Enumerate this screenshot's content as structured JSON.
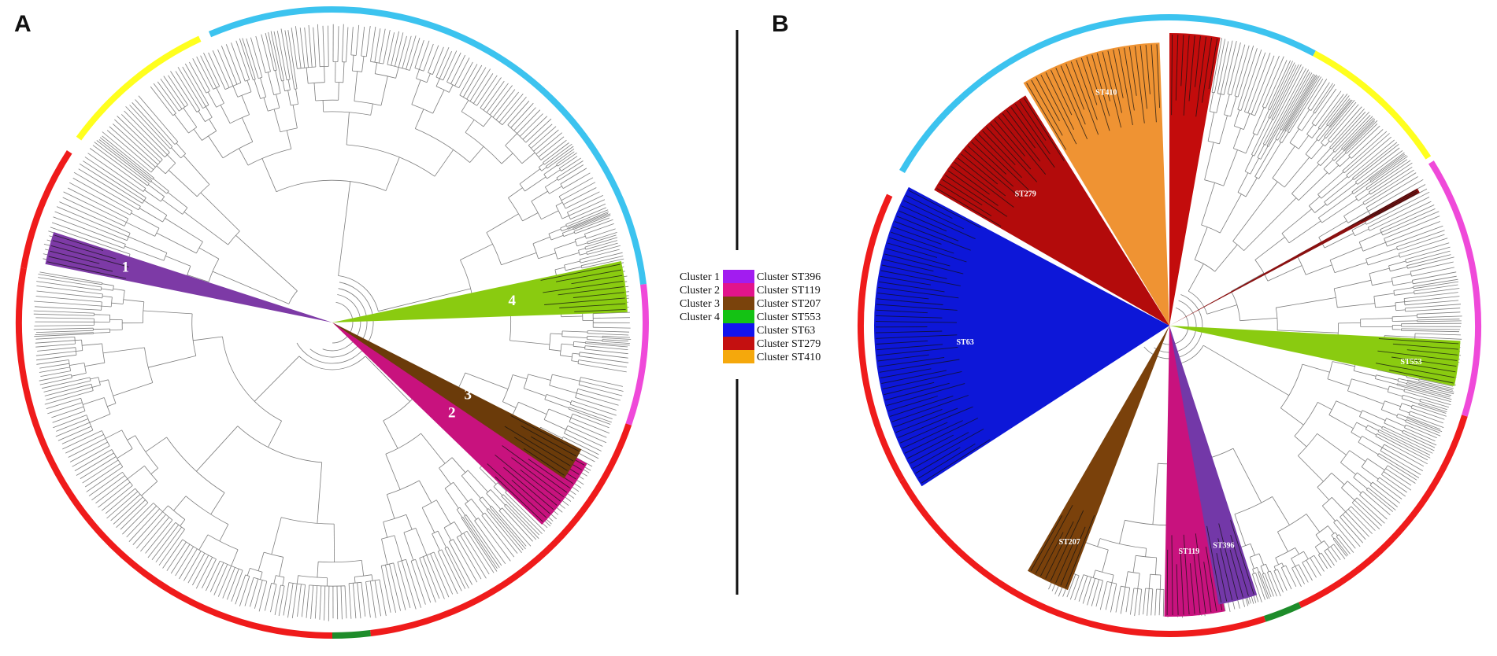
{
  "figure": {
    "panel_a": {
      "letter": "A"
    },
    "panel_b": {
      "letter": "B"
    }
  },
  "colors": {
    "ring_red": "#ef1b1b",
    "ring_cyan": "#3cc3ef",
    "ring_yellow": "#ffff1e",
    "ring_magenta": "#ef49d9",
    "ring_green": "#1e8c2a",
    "branch": "#7d7d7d"
  },
  "tree_a": {
    "clusters": [
      {
        "label": "1",
        "color": "#7d3aa6"
      },
      {
        "label": "2",
        "color": "#c8127e"
      },
      {
        "label": "3",
        "color": "#6b3b0a"
      },
      {
        "label": "4",
        "color": "#8acb10"
      }
    ]
  },
  "tree_b": {
    "clusters": [
      {
        "label": "ST279",
        "color": "#b30b0b"
      },
      {
        "label": "ST410",
        "color": "#ef9333"
      },
      {
        "label": "ST553",
        "color": "#8acb10"
      },
      {
        "label": "ST63",
        "color": "#0d17d8"
      },
      {
        "label": "ST207",
        "color": "#7a410b"
      },
      {
        "label": "ST119",
        "color": "#c8127e"
      },
      {
        "label": "ST396",
        "color": "#7338a8"
      },
      {
        "label": "",
        "color": "#c30c0c"
      },
      {
        "label": "",
        "color": "#8a1010"
      }
    ]
  },
  "legend": {
    "cluster_labels": [
      "Cluster 1",
      "Cluster 2",
      "Cluster 3",
      "Cluster 4"
    ],
    "entries": [
      {
        "label": "Cluster ST396",
        "color": "#a21cf0"
      },
      {
        "label": "Cluster ST119",
        "color": "#e2148c"
      },
      {
        "label": "Cluster ST207",
        "color": "#7a430c"
      },
      {
        "label": "Cluster ST553",
        "color": "#14c214"
      },
      {
        "label": "Cluster ST63",
        "color": "#1313ee"
      },
      {
        "label": "Cluster ST279",
        "color": "#c41010"
      },
      {
        "label": "Cluster ST410",
        "color": "#f5a80c"
      }
    ]
  }
}
